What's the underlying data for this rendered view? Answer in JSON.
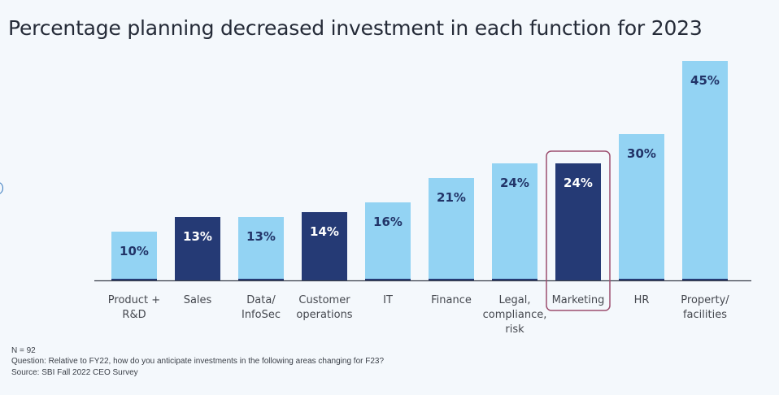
{
  "title": "Percentage planning decreased investment in each function for 2023",
  "chart_data": {
    "type": "bar",
    "title": "Percentage planning decreased investment in each function for 2023",
    "xlabel": "",
    "ylabel": "",
    "ylim": [
      0,
      45
    ],
    "grid": false,
    "categories": [
      [
        "Product +",
        "R&D"
      ],
      [
        "Sales"
      ],
      [
        "Data/",
        "InfoSec"
      ],
      [
        "Customer",
        "operations"
      ],
      [
        "IT"
      ],
      [
        "Finance"
      ],
      [
        "Legal,",
        "compliance,",
        "risk"
      ],
      [
        "Marketing"
      ],
      [
        "HR"
      ],
      [
        "Property/",
        "facilities"
      ]
    ],
    "values": [
      10,
      13,
      13,
      14,
      16,
      21,
      24,
      24,
      30,
      45
    ],
    "value_labels": [
      "10%",
      "13%",
      "13%",
      "14%",
      "16%",
      "21%",
      "24%",
      "24%",
      "30%",
      "45%"
    ],
    "highlight": [
      false,
      true,
      false,
      true,
      false,
      false,
      false,
      true,
      false,
      false
    ],
    "highlight_box_category": "Marketing",
    "colors": {
      "bar": "#93d3f3",
      "bar_highlight": "#253a75",
      "label_on_light": "#223468",
      "label_on_dark": "#ffffff",
      "axis": "#3a3f4a",
      "highlight_box": "#9c4d6e"
    }
  },
  "notes": {
    "n": "N = 92",
    "question": "Question: Relative to FY22, how do you anticipate investments in the following areas changing for F23?",
    "source": "Source: SBI Fall 2022 CEO Survey"
  }
}
